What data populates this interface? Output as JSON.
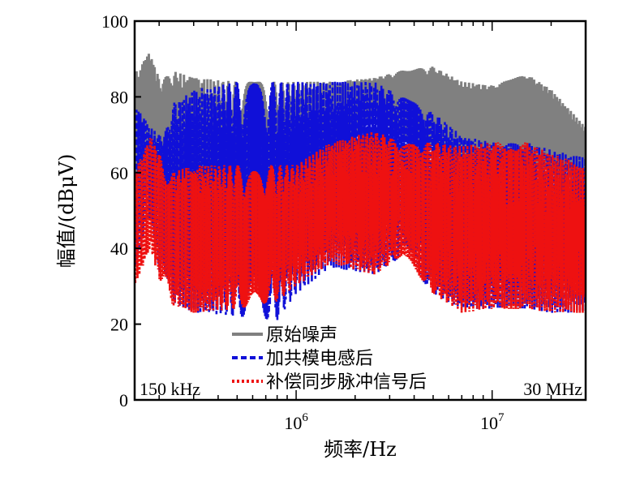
{
  "chart_data": {
    "type": "line",
    "title": "",
    "xlabel": "频率/Hz",
    "ylabel": "幅值/(dBμV)",
    "xscale": "log",
    "xlim": [
      150000,
      30000000
    ],
    "ylim": [
      0,
      100
    ],
    "y_ticks": [
      0,
      20,
      40,
      60,
      80,
      100
    ],
    "x_ticks": [
      {
        "value": 1000000,
        "base": "10",
        "exp": "6"
      },
      {
        "value": 10000000,
        "base": "10",
        "exp": "7"
      }
    ],
    "corner_labels": {
      "left": "150 kHz",
      "right": "30 MHz"
    },
    "legend_position": "bottom-center",
    "series": [
      {
        "name": "原始噪声",
        "color": "#808080",
        "style": "solid",
        "peaks": [
          [
            150000,
            86
          ],
          [
            180000,
            92
          ],
          [
            200000,
            85
          ],
          [
            230000,
            87
          ],
          [
            300000,
            85
          ],
          [
            500000,
            84
          ],
          [
            1000000,
            84
          ],
          [
            1500000,
            84
          ],
          [
            2500000,
            85
          ],
          [
            3500000,
            87
          ],
          [
            5000000,
            88
          ],
          [
            7000000,
            84
          ],
          [
            10000000,
            83
          ],
          [
            15000000,
            86
          ],
          [
            20000000,
            82
          ],
          [
            30000000,
            72
          ]
        ],
        "troughs": [
          [
            150000,
            40
          ],
          [
            180000,
            58
          ],
          [
            200000,
            50
          ],
          [
            230000,
            46
          ],
          [
            300000,
            36
          ],
          [
            500000,
            33
          ],
          [
            800000,
            35
          ],
          [
            1000000,
            45
          ],
          [
            1500000,
            60
          ],
          [
            2500000,
            75
          ],
          [
            3500000,
            68
          ],
          [
            5000000,
            66
          ],
          [
            7000000,
            62
          ],
          [
            10000000,
            60
          ],
          [
            15000000,
            62
          ],
          [
            20000000,
            60
          ],
          [
            30000000,
            58
          ]
        ]
      },
      {
        "name": "加共模电感后",
        "color": "#1010d8",
        "style": "dashed",
        "peaks": [
          [
            150000,
            78
          ],
          [
            180000,
            72
          ],
          [
            200000,
            70
          ],
          [
            230000,
            78
          ],
          [
            300000,
            82
          ],
          [
            500000,
            84
          ],
          [
            1000000,
            84
          ],
          [
            1500000,
            84
          ],
          [
            2500000,
            84
          ],
          [
            3500000,
            80
          ],
          [
            5000000,
            76
          ],
          [
            7000000,
            70
          ],
          [
            10000000,
            68
          ],
          [
            15000000,
            68
          ],
          [
            20000000,
            66
          ],
          [
            30000000,
            64
          ]
        ],
        "troughs": [
          [
            150000,
            35
          ],
          [
            180000,
            48
          ],
          [
            200000,
            34
          ],
          [
            230000,
            26
          ],
          [
            300000,
            23
          ],
          [
            500000,
            22
          ],
          [
            800000,
            21
          ],
          [
            1000000,
            28
          ],
          [
            1500000,
            35
          ],
          [
            2500000,
            33
          ],
          [
            3500000,
            38
          ],
          [
            5000000,
            28
          ],
          [
            7000000,
            24
          ],
          [
            10000000,
            24
          ],
          [
            15000000,
            24
          ],
          [
            20000000,
            23
          ],
          [
            30000000,
            23
          ]
        ]
      },
      {
        "name": "补偿同步脉冲信号后",
        "color": "#ee1111",
        "style": "dotted",
        "peaks": [
          [
            150000,
            60
          ],
          [
            180000,
            70
          ],
          [
            200000,
            65
          ],
          [
            230000,
            60
          ],
          [
            300000,
            62
          ],
          [
            500000,
            62
          ],
          [
            1000000,
            62
          ],
          [
            1500000,
            68
          ],
          [
            2500000,
            71
          ],
          [
            3500000,
            68
          ],
          [
            5000000,
            68
          ],
          [
            7000000,
            67
          ],
          [
            10000000,
            68
          ],
          [
            15000000,
            68
          ],
          [
            20000000,
            65
          ],
          [
            30000000,
            62
          ]
        ],
        "troughs": [
          [
            150000,
            30
          ],
          [
            180000,
            40
          ],
          [
            200000,
            32
          ],
          [
            230000,
            25
          ],
          [
            300000,
            23
          ],
          [
            500000,
            24
          ],
          [
            800000,
            26
          ],
          [
            1000000,
            30
          ],
          [
            1500000,
            36
          ],
          [
            2500000,
            33
          ],
          [
            3500000,
            38
          ],
          [
            5000000,
            28
          ],
          [
            7000000,
            23
          ],
          [
            10000000,
            24
          ],
          [
            15000000,
            24
          ],
          [
            20000000,
            23
          ],
          [
            30000000,
            23
          ]
        ]
      }
    ]
  }
}
